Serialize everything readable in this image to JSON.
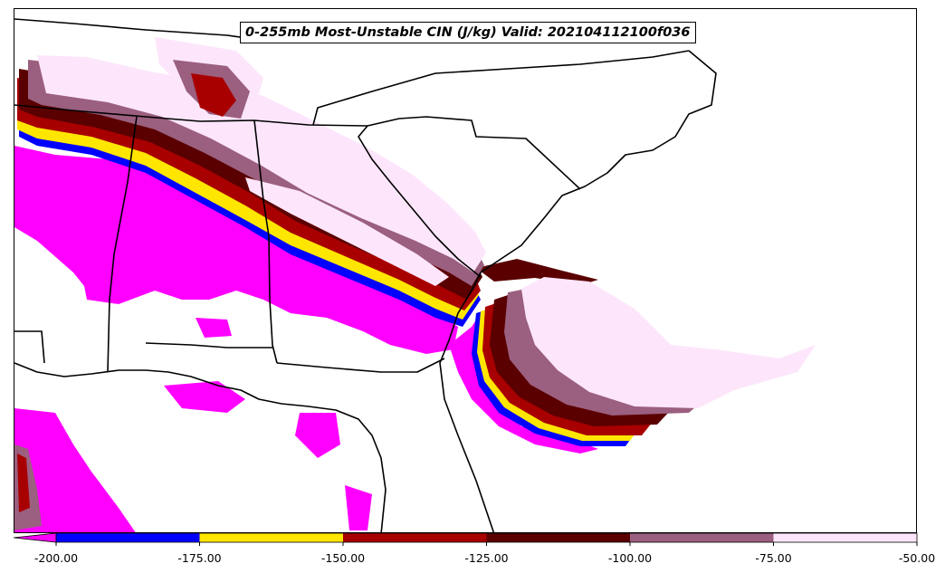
{
  "title": "0-255mb Most-Unstable CIN (J/kg) Valid: 202104112100f036",
  "legend": {
    "ticks": [
      "-200.00",
      "-175.00",
      "-150.00",
      "-125.00",
      "-100.00",
      "-75.00",
      "-50.00"
    ],
    "under_color": "#ff00ff",
    "bins": [
      {
        "from": -200,
        "to": -175,
        "color": "#0000ff"
      },
      {
        "from": -175,
        "to": -150,
        "color": "#ffe600"
      },
      {
        "from": -150,
        "to": -125,
        "color": "#a80000"
      },
      {
        "from": -125,
        "to": -100,
        "color": "#5a0000"
      },
      {
        "from": -100,
        "to": -75,
        "color": "#9b5f7f"
      },
      {
        "from": -75,
        "to": -50,
        "color": "#fde6fb"
      }
    ]
  },
  "map": {
    "background": "#ffffff",
    "boundary_color": "#000000"
  }
}
